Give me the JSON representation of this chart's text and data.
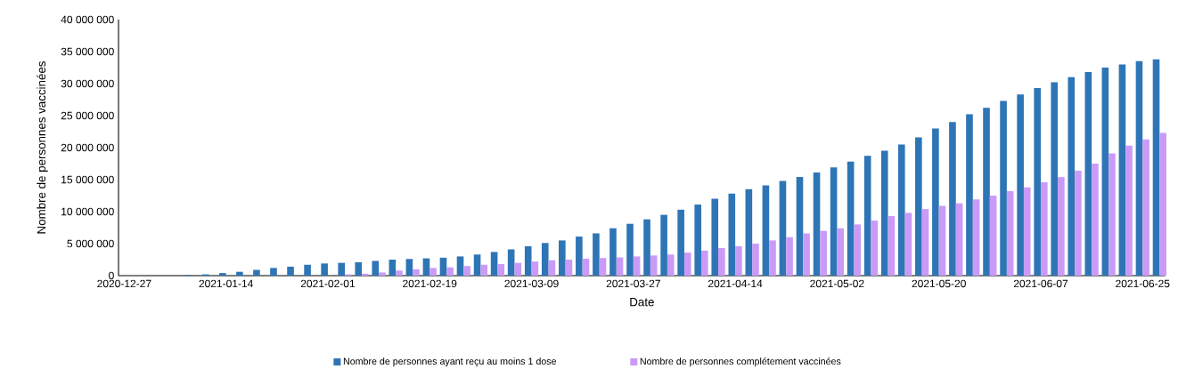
{
  "chart_data": {
    "type": "bar",
    "xlabel": "Date",
    "ylabel": "Nombre de personnes vaccinées",
    "x": [
      "2020-12-27",
      "2020-12-30",
      "2021-01-02",
      "2021-01-05",
      "2021-01-08",
      "2021-01-11",
      "2021-01-14",
      "2021-01-17",
      "2021-01-20",
      "2021-01-23",
      "2021-01-26",
      "2021-01-29",
      "2021-02-01",
      "2021-02-04",
      "2021-02-07",
      "2021-02-10",
      "2021-02-13",
      "2021-02-16",
      "2021-02-19",
      "2021-02-22",
      "2021-02-25",
      "2021-02-28",
      "2021-03-03",
      "2021-03-06",
      "2021-03-09",
      "2021-03-12",
      "2021-03-15",
      "2021-03-18",
      "2021-03-21",
      "2021-03-24",
      "2021-03-27",
      "2021-03-30",
      "2021-04-02",
      "2021-04-05",
      "2021-04-08",
      "2021-04-11",
      "2021-04-14",
      "2021-04-17",
      "2021-04-20",
      "2021-04-23",
      "2021-04-26",
      "2021-04-29",
      "2021-05-02",
      "2021-05-05",
      "2021-05-08",
      "2021-05-11",
      "2021-05-14",
      "2021-05-17",
      "2021-05-20",
      "2021-05-23",
      "2021-05-26",
      "2021-05-29",
      "2021-06-01",
      "2021-06-04",
      "2021-06-07",
      "2021-06-10",
      "2021-06-13",
      "2021-06-16",
      "2021-06-19",
      "2021-06-22",
      "2021-06-25",
      "2021-06-28"
    ],
    "series": [
      {
        "name": "Nombre de personnes ayant reçu au moins 1 dose",
        "color": "#2e75b6",
        "values": [
          0,
          0,
          0,
          0,
          100000,
          200000,
          400000,
          600000,
          900000,
          1200000,
          1400000,
          1700000,
          1900000,
          2000000,
          2100000,
          2300000,
          2500000,
          2600000,
          2700000,
          2800000,
          3000000,
          3300000,
          3700000,
          4100000,
          4600000,
          5100000,
          5500000,
          6100000,
          6600000,
          7400000,
          8100000,
          8800000,
          9500000,
          10300000,
          11100000,
          12000000,
          12800000,
          13500000,
          14100000,
          14800000,
          15400000,
          16100000,
          16900000,
          17800000,
          18700000,
          19500000,
          20500000,
          21600000,
          23000000,
          24000000,
          25200000,
          26200000,
          27300000,
          28300000,
          29300000,
          30200000,
          31000000,
          31800000,
          32500000,
          33000000,
          33500000,
          33800000
        ]
      },
      {
        "name": "Nombre de personnes complétement vaccinées",
        "color": "#c99bf7",
        "values": [
          0,
          0,
          0,
          0,
          0,
          0,
          0,
          0,
          0,
          0,
          0,
          0,
          0,
          200000,
          300000,
          500000,
          800000,
          1000000,
          1200000,
          1300000,
          1500000,
          1700000,
          1800000,
          2000000,
          2200000,
          2400000,
          2500000,
          2650000,
          2750000,
          2850000,
          3000000,
          3150000,
          3300000,
          3600000,
          3900000,
          4300000,
          4600000,
          5000000,
          5500000,
          6000000,
          6600000,
          7000000,
          7400000,
          8000000,
          8600000,
          9300000,
          9800000,
          10400000,
          10900000,
          11300000,
          11900000,
          12500000,
          13200000,
          13800000,
          14600000,
          15400000,
          16400000,
          17500000,
          19100000,
          20300000,
          21300000,
          22300000
        ]
      }
    ],
    "xlim": [
      "2020-12-26",
      "2021-06-29"
    ],
    "xticks": [
      "2020-12-27",
      "2021-01-14",
      "2021-02-01",
      "2021-02-19",
      "2021-03-09",
      "2021-03-27",
      "2021-04-14",
      "2021-05-02",
      "2021-05-20",
      "2021-06-07",
      "2021-06-25"
    ],
    "ylim": [
      0,
      40000000
    ],
    "yticks": [
      {
        "value": 0,
        "label": "0"
      },
      {
        "value": 5000000,
        "label": "5 000 000"
      },
      {
        "value": 10000000,
        "label": "10 000 000"
      },
      {
        "value": 15000000,
        "label": "15 000 000"
      },
      {
        "value": 20000000,
        "label": "20 000 000"
      },
      {
        "value": 25000000,
        "label": "25 000 000"
      },
      {
        "value": 30000000,
        "label": "30 000 000"
      },
      {
        "value": 35000000,
        "label": "35 000 000"
      },
      {
        "value": 40000000,
        "label": "40 000 000"
      }
    ],
    "grid": false,
    "legend": "bottom"
  }
}
